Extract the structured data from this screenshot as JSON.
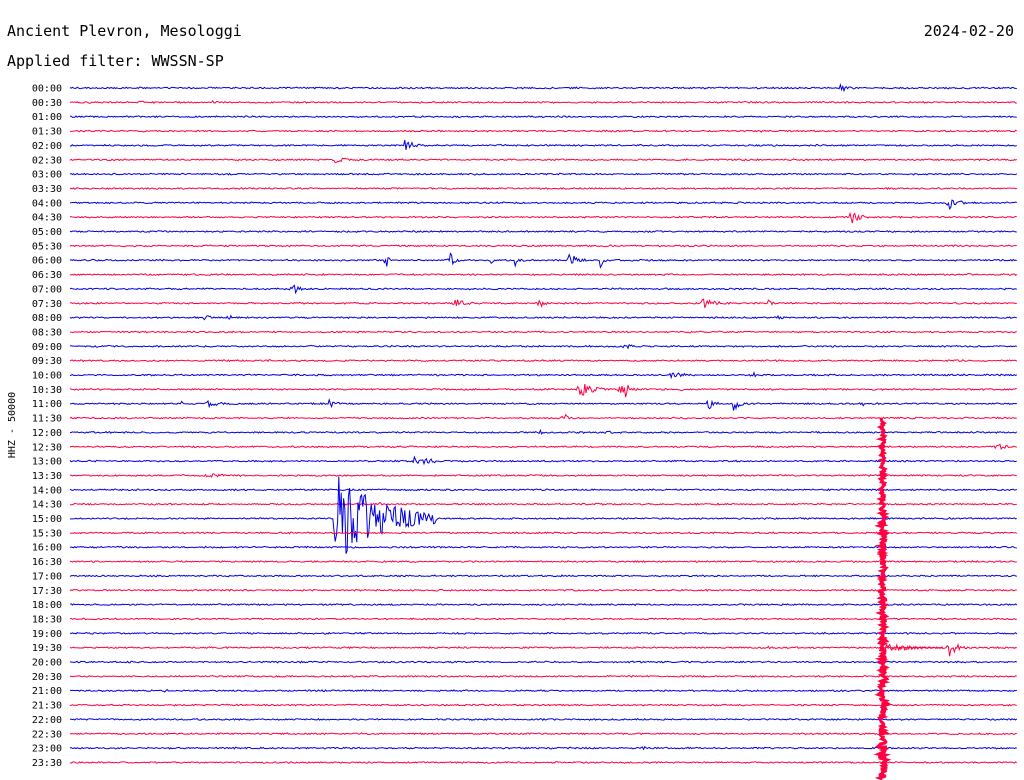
{
  "header": {
    "station": "Ancient Plevron, Mesologgi",
    "date": "2024-02-20",
    "filter": "Applied filter: WWSSN-SP"
  },
  "colors": {
    "blue": "#0000e0",
    "red": "#ff0040"
  },
  "chart_data": {
    "type": "line",
    "title": "",
    "xlabel": "",
    "ylabel": "HHZ - 50000",
    "xlim_minutes": [
      0,
      30
    ],
    "rows": [
      "00:00",
      "00:30",
      "01:00",
      "01:30",
      "02:00",
      "02:30",
      "03:00",
      "03:30",
      "04:00",
      "04:30",
      "05:00",
      "05:30",
      "06:00",
      "06:30",
      "07:00",
      "07:30",
      "08:00",
      "08:30",
      "09:00",
      "09:30",
      "10:00",
      "10:30",
      "11:00",
      "11:30",
      "12:00",
      "12:30",
      "13:00",
      "13:30",
      "14:00",
      "14:30",
      "15:00",
      "15:30",
      "16:00",
      "16:30",
      "17:00",
      "17:30",
      "18:00",
      "18:30",
      "19:00",
      "19:30",
      "20:00",
      "20:30",
      "21:00",
      "21:30",
      "22:00",
      "22:30",
      "23:00",
      "23:30"
    ],
    "row_colors": [
      "blue",
      "red"
    ],
    "events": [
      {
        "row": "00:00",
        "t": 24.4,
        "amp": 5,
        "dur": 0.6
      },
      {
        "row": "00:30",
        "t": 2.2,
        "amp": 2,
        "dur": 0.5
      },
      {
        "row": "00:30",
        "t": 4.5,
        "amp": 2,
        "dur": 0.8
      },
      {
        "row": "01:30",
        "t": 21.8,
        "amp": 3,
        "dur": 0.3
      },
      {
        "row": "02:00",
        "t": 10.6,
        "amp": 7,
        "dur": 0.6
      },
      {
        "row": "02:00",
        "t": 13.6,
        "amp": 2,
        "dur": 0.2
      },
      {
        "row": "02:30",
        "t": 8.4,
        "amp": 3,
        "dur": 1.0
      },
      {
        "row": "02:30",
        "t": 21.7,
        "amp": 1.5,
        "dur": 0.4
      },
      {
        "row": "04:00",
        "t": 27.8,
        "amp": 9,
        "dur": 0.6
      },
      {
        "row": "04:30",
        "t": 24.7,
        "amp": 9,
        "dur": 0.6
      },
      {
        "row": "04:30",
        "t": 21.0,
        "amp": 2,
        "dur": 0.1
      },
      {
        "row": "06:00",
        "t": 10.0,
        "amp": 10,
        "dur": 0.2
      },
      {
        "row": "06:00",
        "t": 12.0,
        "amp": 9,
        "dur": 0.4
      },
      {
        "row": "06:00",
        "t": 13.3,
        "amp": 6,
        "dur": 0.2
      },
      {
        "row": "06:00",
        "t": 14.1,
        "amp": 6,
        "dur": 0.4
      },
      {
        "row": "06:00",
        "t": 15.8,
        "amp": 8,
        "dur": 0.6
      },
      {
        "row": "06:00",
        "t": 16.8,
        "amp": 9,
        "dur": 0.2
      },
      {
        "row": "07:00",
        "t": 7.0,
        "amp": 9,
        "dur": 0.4
      },
      {
        "row": "07:30",
        "t": 12.1,
        "amp": 6,
        "dur": 0.8
      },
      {
        "row": "07:30",
        "t": 14.8,
        "amp": 7,
        "dur": 0.4
      },
      {
        "row": "07:30",
        "t": 20.0,
        "amp": 6,
        "dur": 1.0
      },
      {
        "row": "07:30",
        "t": 22.1,
        "amp": 5,
        "dur": 0.3
      },
      {
        "row": "08:00",
        "t": 4.3,
        "amp": 8,
        "dur": 0.2
      },
      {
        "row": "08:00",
        "t": 5.0,
        "amp": 5,
        "dur": 0.3
      },
      {
        "row": "08:00",
        "t": 22.4,
        "amp": 2,
        "dur": 0.6
      },
      {
        "row": "09:00",
        "t": 17.5,
        "amp": 3,
        "dur": 1.0
      },
      {
        "row": "09:30",
        "t": 6.3,
        "amp": 4,
        "dur": 0.1
      },
      {
        "row": "10:00",
        "t": 19.0,
        "amp": 3,
        "dur": 1.5
      },
      {
        "row": "10:00",
        "t": 21.6,
        "amp": 4,
        "dur": 0.3
      },
      {
        "row": "10:30",
        "t": 16.1,
        "amp": 9,
        "dur": 0.9
      },
      {
        "row": "10:30",
        "t": 17.4,
        "amp": 7,
        "dur": 0.4
      },
      {
        "row": "10:30",
        "t": 17.6,
        "amp": 8,
        "dur": 0.4
      },
      {
        "row": "10:30",
        "t": 19.3,
        "amp": 4,
        "dur": 0.2
      },
      {
        "row": "10:30",
        "t": 8.7,
        "amp": 2,
        "dur": 0.1
      },
      {
        "row": "11:00",
        "t": 3.5,
        "amp": 4,
        "dur": 0.2
      },
      {
        "row": "11:00",
        "t": 4.3,
        "amp": 5,
        "dur": 0.8
      },
      {
        "row": "11:00",
        "t": 8.2,
        "amp": 6,
        "dur": 0.5
      },
      {
        "row": "11:00",
        "t": 20.2,
        "amp": 9,
        "dur": 0.4
      },
      {
        "row": "11:00",
        "t": 21.0,
        "amp": 9,
        "dur": 0.4
      },
      {
        "row": "11:00",
        "t": 25.1,
        "amp": 4,
        "dur": 0.3
      },
      {
        "row": "11:30",
        "t": 15.6,
        "amp": 7,
        "dur": 0.3
      },
      {
        "row": "12:00",
        "t": 14.9,
        "amp": 4,
        "dur": 0.2
      },
      {
        "row": "12:00",
        "t": 17.0,
        "amp": 3,
        "dur": 0.4
      },
      {
        "row": "12:00",
        "t": 27.5,
        "amp": 2,
        "dur": 0.4
      },
      {
        "row": "12:30",
        "t": 29.3,
        "amp": 4,
        "dur": 0.8
      },
      {
        "row": "13:00",
        "t": 10.9,
        "amp": 7,
        "dur": 1.0
      },
      {
        "row": "13:30",
        "t": 4.3,
        "amp": 3,
        "dur": 1.2
      },
      {
        "row": "14:30",
        "t": 9.8,
        "amp": 2,
        "dur": 0.2
      },
      {
        "row": "15:00",
        "t": 8.4,
        "amp": 47,
        "dur": 3.2
      },
      {
        "row": "18:30",
        "t": 20.3,
        "amp": 2,
        "dur": 0.2
      },
      {
        "row": "19:30",
        "t": 22.1,
        "amp": 2,
        "dur": 0.4
      },
      {
        "row": "19:30",
        "t": 27.8,
        "amp": 11,
        "dur": 0.6
      },
      {
        "row": "21:00",
        "t": 3.0,
        "amp": 2,
        "dur": 0.4
      },
      {
        "row": "21:30",
        "t": 11.3,
        "amp": 1.5,
        "dur": 0.3
      },
      {
        "row": "22:30",
        "t": 7.0,
        "amp": 2,
        "dur": 0.3
      },
      {
        "row": "23:00",
        "t": 18.1,
        "amp": 3,
        "dur": 0.5
      }
    ],
    "big_quake": {
      "row": "12:00",
      "t": 25.75,
      "amp": 80,
      "rows_span": 23
    },
    "grid": false
  }
}
